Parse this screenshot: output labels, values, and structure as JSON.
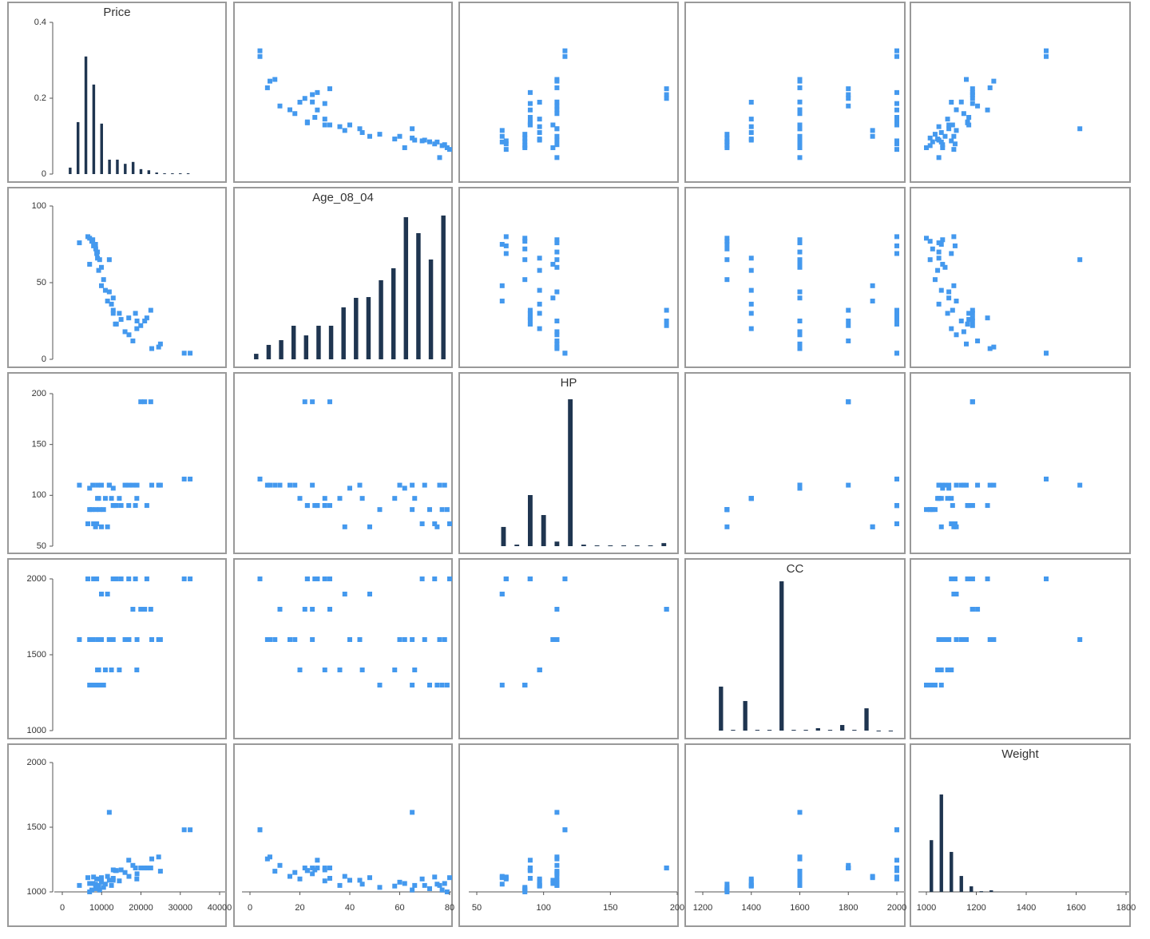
{
  "chart_data": {
    "type": "scatter_matrix",
    "point_color": "#4499ee",
    "bar_color": "#1f3550",
    "variables": [
      {
        "name": "Price",
        "xlim": [
          0,
          40000
        ],
        "xticks": [
          0,
          10000,
          20000,
          30000,
          40000
        ],
        "ylim": [
          0,
          40000
        ]
      },
      {
        "name": "Age_08_04",
        "xlim": [
          0,
          80
        ],
        "xticks": [
          0,
          20,
          40,
          60,
          80
        ],
        "ylim": [
          0,
          100
        ],
        "yticks": [
          0,
          50,
          100
        ]
      },
      {
        "name": "HP",
        "xlim": [
          50,
          200
        ],
        "xticks": [
          50,
          100,
          150,
          200
        ],
        "ylim": [
          50,
          200
        ],
        "yticks": [
          50,
          100,
          150,
          200
        ]
      },
      {
        "name": "CC",
        "xlim": [
          1200,
          2000
        ],
        "xticks": [
          1200,
          1400,
          1600,
          1800,
          2000
        ],
        "ylim": [
          1000,
          2000
        ],
        "yticks": [
          1000,
          1500,
          2000
        ]
      },
      {
        "name": "Weight",
        "xlim": [
          1000,
          1800
        ],
        "xticks": [
          1000,
          1200,
          1400,
          1600,
          1800
        ],
        "ylim": [
          1000,
          2000
        ],
        "yticks": [
          1000,
          1500,
          2000
        ]
      }
    ],
    "histograms": [
      {
        "type": "histogram",
        "bins": [
          1000,
          3000,
          5000,
          7000,
          9000,
          11000,
          13000,
          15000,
          17000,
          19000,
          21000,
          23000,
          25000,
          27000,
          29000,
          31000,
          33000
        ],
        "values": [
          0.017,
          0.137,
          0.31,
          0.236,
          0.133,
          0.038,
          0.038,
          0.027,
          0.032,
          0.013,
          0.01,
          0.004,
          0.002,
          0.002,
          0.002,
          0.002
        ],
        "ylim": [
          0,
          0.4
        ],
        "yticks": [
          0,
          0.2,
          0.4
        ]
      },
      {
        "type": "histogram",
        "bins": [
          0,
          5,
          10,
          15,
          20,
          25,
          30,
          35,
          40,
          45,
          50,
          55,
          60,
          65,
          70,
          75,
          80
        ],
        "values": [
          0.036,
          0.094,
          0.125,
          0.219,
          0.156,
          0.219,
          0.219,
          0.339,
          0.401,
          0.406,
          0.516,
          0.594,
          0.927,
          0.823,
          0.651,
          0.938
        ],
        "ylim": [
          0,
          1
        ]
      },
      {
        "type": "histogram",
        "bins": [
          65,
          75,
          85,
          95,
          105,
          115,
          125,
          135,
          145,
          155,
          165,
          175,
          185,
          195
        ],
        "values": [
          0.126,
          0.01,
          0.335,
          0.204,
          0.03,
          0.963,
          0.01,
          0.005,
          0.005,
          0.005,
          0.005,
          0.005,
          0.02
        ],
        "ylim": [
          0,
          1
        ]
      },
      {
        "type": "histogram",
        "bins": [
          1250,
          1300,
          1350,
          1400,
          1450,
          1500,
          1550,
          1600,
          1650,
          1700,
          1750,
          1800,
          1850,
          1900,
          1950,
          2000
        ],
        "values": [
          0.29,
          0.005,
          0.195,
          0.005,
          0.005,
          0.984,
          0.005,
          0.005,
          0.016,
          0.005,
          0.037,
          0.005,
          0.147,
          0,
          0
        ],
        "ylim": [
          0,
          1
        ]
      },
      {
        "type": "histogram",
        "bins": [
          1000,
          1040,
          1080,
          1120,
          1160,
          1200,
          1240,
          1280
        ],
        "values": [
          0.4,
          0.753,
          0.309,
          0.123,
          0.043,
          0.005,
          0.012
        ],
        "ylim": [
          0,
          1
        ]
      }
    ],
    "records": [
      [
        13500,
        23,
        90,
        2000,
        1165
      ],
      [
        13750,
        23,
        90,
        2000,
        1165
      ],
      [
        14950,
        26,
        90,
        2000,
        1170
      ],
      [
        12950,
        30,
        90,
        2000,
        1170
      ],
      [
        16900,
        27,
        90,
        2000,
        1245
      ],
      [
        18600,
        30,
        90,
        2000,
        1185
      ],
      [
        21500,
        27,
        90,
        2000,
        1185
      ],
      [
        12950,
        32,
        90,
        2000,
        1105
      ],
      [
        20950,
        25,
        192,
        1800,
        1185
      ],
      [
        19950,
        22,
        192,
        1800,
        1185
      ],
      [
        22500,
        32,
        192,
        1800,
        1185
      ],
      [
        32500,
        4,
        116,
        2000,
        1480
      ],
      [
        31000,
        4,
        116,
        2000,
        1480
      ],
      [
        22750,
        7,
        110,
        1600,
        1255
      ],
      [
        16950,
        16,
        110,
        1600,
        1120
      ],
      [
        19000,
        25,
        110,
        1600,
        1140
      ],
      [
        24950,
        10,
        110,
        1600,
        1160
      ],
      [
        15950,
        18,
        110,
        1600,
        1150
      ],
      [
        11950,
        44,
        110,
        1600,
        1090
      ],
      [
        9950,
        60,
        110,
        1600,
        1075
      ],
      [
        8950,
        70,
        110,
        1600,
        1050
      ],
      [
        7750,
        78,
        110,
        1600,
        1065
      ],
      [
        9500,
        65,
        86,
        1300,
        1015
      ],
      [
        8500,
        72,
        86,
        1300,
        1025
      ],
      [
        7500,
        77,
        86,
        1300,
        1015
      ],
      [
        6950,
        79,
        86,
        1300,
        1000
      ],
      [
        10500,
        52,
        86,
        1300,
        1035
      ],
      [
        12500,
        36,
        97,
        1400,
        1050
      ],
      [
        10950,
        45,
        97,
        1400,
        1060
      ],
      [
        9250,
        58,
        97,
        1400,
        1045
      ],
      [
        8950,
        66,
        97,
        1400,
        1050
      ],
      [
        14500,
        30,
        97,
        1400,
        1085
      ],
      [
        18950,
        20,
        97,
        1400,
        1100
      ],
      [
        7950,
        74,
        72,
        2000,
        1115
      ],
      [
        6500,
        80,
        72,
        2000,
        1110
      ],
      [
        8750,
        69,
        72,
        2000,
        1100
      ],
      [
        9950,
        48,
        69,
        1900,
        1110
      ],
      [
        11500,
        38,
        69,
        1900,
        1120
      ],
      [
        12950,
        40,
        107,
        1600,
        1090
      ],
      [
        4350,
        76,
        110,
        1600,
        1050
      ],
      [
        11950,
        65,
        110,
        1600,
        1615
      ],
      [
        6950,
        62,
        107,
        1600,
        1065
      ],
      [
        24500,
        8,
        110,
        1600,
        1270
      ],
      [
        17950,
        12,
        110,
        1800,
        1205
      ],
      [
        8450,
        75,
        69,
        1300,
        1060
      ]
    ]
  }
}
